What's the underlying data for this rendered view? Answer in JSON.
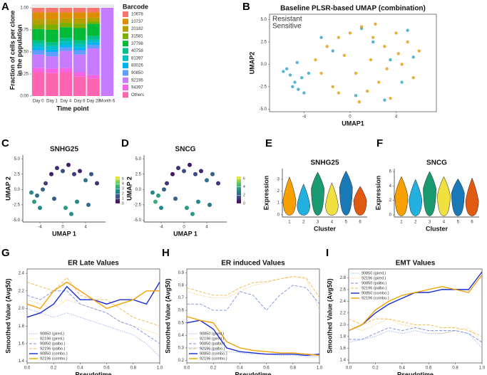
{
  "chart_data": [
    {
      "type": "stacked_bar",
      "panel": "A",
      "y_label": [
        "Fraction of cells per clone",
        "in the population"
      ],
      "x_label": "Time point",
      "legend_title": "Barcode",
      "categories": [
        "Day 0",
        "Day 1",
        "Day 4",
        "Day 8",
        "Day 28",
        "Month 6"
      ],
      "ylim": [
        0,
        1.04
      ],
      "yticks": [
        {
          "value": 0,
          "label": "0.00"
        },
        0.25,
        {
          "value": 0.5,
          "label": "0.50"
        },
        0.75,
        {
          "value": 1,
          "label": "1.00"
        }
      ],
      "series": [
        {
          "name": "Others",
          "color": "#ff64b0",
          "values": [
            0.27,
            0.26,
            0.27,
            0.22,
            0.2,
            0
          ]
        },
        {
          "name": "94397",
          "color": "#f564e3",
          "values": [
            0.05,
            0.05,
            0.05,
            0.05,
            0.04,
            0
          ]
        },
        {
          "name": "92196",
          "color": "#c77cff",
          "values": [
            0.15,
            0.14,
            0.19,
            0.2,
            0.3,
            1
          ]
        },
        {
          "name": "90850",
          "color": "#619cff",
          "values": [
            0.05,
            0.05,
            0.04,
            0.05,
            0.04,
            0
          ]
        },
        {
          "name": "83026",
          "color": "#00b4f0",
          "values": [
            0.03,
            0.03,
            0.03,
            0.03,
            0.03,
            0
          ]
        },
        {
          "name": "81397",
          "color": "#00bfc4",
          "values": [
            0.04,
            0.04,
            0.04,
            0.04,
            0.03,
            0
          ]
        },
        {
          "name": "40758",
          "color": "#00c08b",
          "values": [
            0.04,
            0.04,
            0.04,
            0.04,
            0.04,
            0
          ]
        },
        {
          "name": "37798",
          "color": "#00ba38",
          "values": [
            0.13,
            0.14,
            0.12,
            0.14,
            0.14,
            0
          ]
        },
        {
          "name": "31581",
          "color": "#7cae00",
          "values": [
            0.05,
            0.06,
            0.05,
            0.05,
            0.03,
            0
          ]
        },
        {
          "name": "20182",
          "color": "#b79f00",
          "values": [
            0.06,
            0.06,
            0.05,
            0.06,
            0.04,
            0
          ]
        },
        {
          "name": "10737",
          "color": "#de8c00",
          "values": [
            0.08,
            0.08,
            0.07,
            0.07,
            0.06,
            0
          ]
        },
        {
          "name": "10678",
          "color": "#f8766d",
          "values": [
            0.05,
            0.05,
            0.05,
            0.05,
            0.05,
            0
          ]
        }
      ]
    },
    {
      "type": "scatter",
      "panel": "B",
      "title": "Baseline PLSR-based UMAP (combination)",
      "x_label": "UMAP1",
      "y_label": "UMAP2",
      "xlim": [
        -7,
        7.5
      ],
      "ylim": [
        -5.3,
        5.6
      ],
      "xticks": [
        -4,
        0,
        4
      ],
      "yticks": [
        {
          "value": -5,
          "label": "-5.0"
        },
        -2.5,
        {
          "value": 0,
          "label": "0.0"
        },
        2.5,
        {
          "value": 5,
          "label": "5.0"
        }
      ],
      "series": [
        {
          "name": "Resistant",
          "color": "#3aa8c8",
          "x": [
            -5.5,
            -5.2,
            -4.8,
            -4.5,
            -4.2,
            -5.8,
            -5.0,
            -4.0,
            -3.6,
            -4.6,
            -1.5,
            0.5,
            2.0,
            3.5,
            4.5,
            5.5,
            -2.5,
            1.0,
            3.0,
            5.0
          ],
          "y": [
            -0.5,
            -1.2,
            -2.0,
            -2.8,
            -1.5,
            -0.8,
            -2.5,
            -3.2,
            -1.0,
            0.2,
            1.5,
            -3.5,
            2.5,
            0.5,
            -2.0,
            0.8,
            3.0,
            4.0,
            -4.0,
            3.8
          ]
        },
        {
          "name": "Sensitive",
          "color": "#e8a020",
          "x": [
            -3.0,
            -2.0,
            -1.0,
            0.0,
            1.0,
            2.0,
            3.0,
            4.0,
            5.0,
            6.0,
            -2.5,
            -1.5,
            0.5,
            1.5,
            2.5,
            3.5,
            4.5,
            5.5,
            -0.5,
            1.8,
            3.2,
            4.2,
            -1.0,
            0.8,
            2.2
          ],
          "y": [
            0.5,
            2.0,
            3.0,
            3.5,
            4.2,
            3.0,
            2.0,
            3.5,
            2.5,
            1.5,
            -1.0,
            -2.5,
            -1.0,
            -3.0,
            -2.0,
            -3.8,
            0.0,
            -1.5,
            1.0,
            0.5,
            -0.5,
            1.2,
            -3.2,
            -4.2,
            4.5
          ]
        }
      ]
    },
    {
      "type": "scatter",
      "panel": "C",
      "title": "SNHG25",
      "x_label": "UMAP 1",
      "y_label": "UMAP 2",
      "xlim": [
        -7,
        7.5
      ],
      "ylim": [
        -5.3,
        5.6
      ],
      "xticks": [
        -4,
        0,
        4
      ],
      "yticks": [
        {
          "value": -5,
          "label": "-5.0"
        },
        -2.5,
        {
          "value": 0,
          "label": "0.0"
        },
        2.5,
        {
          "value": 5,
          "label": "5.0"
        }
      ],
      "x": [
        -5.5,
        -5,
        -4.5,
        -4,
        -3,
        -2,
        -1,
        0,
        1,
        2,
        3,
        4,
        5,
        6,
        -1.5,
        0.5,
        2.5,
        4.5,
        -3.5,
        1.5
      ],
      "y": [
        -0.5,
        -2,
        -1,
        -3,
        1,
        2.5,
        3.5,
        3,
        4,
        2.5,
        3,
        1.5,
        2.5,
        1,
        -1.5,
        -3,
        -2,
        -2.5,
        0,
        -4
      ],
      "values": [
        2.5,
        3,
        2,
        2.5,
        1,
        0.5,
        0.8,
        1.2,
        0.5,
        1,
        0.6,
        2,
        1.5,
        0.8,
        1.5,
        3,
        2.5,
        2,
        1.8,
        2.8
      ],
      "colormap": [
        "#440154",
        "#3b528b",
        "#21918c",
        "#5ec962",
        "#fde725"
      ],
      "clim": [
        0,
        5.5
      ],
      "cticks": [
        0,
        1,
        2,
        3,
        4,
        5
      ]
    },
    {
      "type": "scatter",
      "panel": "D",
      "title": "SNCG",
      "x_label": "UMAP 1",
      "y_label": "UMAP 2",
      "xlim": [
        -7,
        7.5
      ],
      "ylim": [
        -5.3,
        5.6
      ],
      "xticks": [
        -4,
        0,
        4
      ],
      "yticks": [
        {
          "value": -5,
          "label": "-5.0"
        },
        -2.5,
        {
          "value": 0,
          "label": "0.0"
        },
        2.5,
        {
          "value": 5,
          "label": "5.0"
        }
      ],
      "x": [
        -5.5,
        -5,
        -4.5,
        -4,
        -3,
        -2,
        -1,
        0,
        1,
        2,
        3,
        4,
        5,
        6,
        -1.5,
        0.5,
        2.5,
        4.5,
        -3.5,
        1.5
      ],
      "y": [
        -0.5,
        -2,
        -1,
        -3,
        1,
        2.5,
        3.5,
        3,
        4,
        2.5,
        3,
        1.5,
        2.5,
        1,
        -1.5,
        -3,
        -2,
        -2.5,
        0,
        -4
      ],
      "values": [
        3,
        4,
        3.5,
        3,
        1,
        0.5,
        1,
        1.5,
        0.5,
        1.5,
        0.8,
        2.5,
        2,
        1,
        2,
        3.5,
        3,
        2.5,
        2,
        3.5
      ],
      "colormap": [
        "#440154",
        "#3b528b",
        "#21918c",
        "#5ec962",
        "#fde725"
      ],
      "clim": [
        0,
        6.5
      ],
      "cticks": [
        0,
        2,
        4,
        6
      ]
    },
    {
      "type": "violin",
      "panel": "E",
      "title": "SNHG25",
      "x_label": "Cluster",
      "y_label": "Expression",
      "categories": [
        "1",
        "2",
        "3",
        "4",
        "5",
        "6"
      ],
      "ylim": [
        -0.2,
        3.9
      ],
      "yticks": [
        0,
        1,
        2,
        3
      ],
      "values": [
        1.2,
        0.8,
        2.2,
        0.8,
        2.3,
        1.2
      ],
      "max": [
        3.2,
        2.6,
        3.6,
        2.7,
        3.7,
        2.4
      ],
      "colors": [
        "#f8a000",
        "#22b0e0",
        "#1a9a70",
        "#f0e040",
        "#1a7ab8",
        "#e05a10"
      ]
    },
    {
      "type": "violin",
      "panel": "F",
      "title": "SNCG",
      "x_label": "Cluster",
      "y_label": "Expression",
      "categories": [
        "1",
        "2",
        "3",
        "4",
        "5",
        "6"
      ],
      "ylim": [
        -0.3,
        6.4
      ],
      "yticks": [
        0,
        2,
        4,
        6
      ],
      "values": [
        2.6,
        2.1,
        3.6,
        2.7,
        3.0,
        1.9
      ],
      "max": [
        5.3,
        4.9,
        6.0,
        5.3,
        5.0,
        5.1
      ],
      "colors": [
        "#f8a000",
        "#22b0e0",
        "#1a9a70",
        "#f0e040",
        "#1a7ab8",
        "#e05a10"
      ]
    },
    {
      "type": "line",
      "panel": "G",
      "title": "ER Late Values",
      "x_label": "Pseudotime",
      "y_label": "Smoothed Value (Avg50)",
      "legend": "lower left",
      "x": [
        0,
        0.1,
        0.2,
        0.3,
        0.4,
        0.5,
        0.6,
        0.7,
        0.8,
        0.9,
        1.0
      ],
      "xlim": [
        0,
        1
      ],
      "xticks": [
        {
          "value": 0,
          "label": "0.0"
        },
        0.2,
        0.4,
        0.6,
        0.8,
        {
          "value": 1,
          "label": "1.0"
        }
      ],
      "ylim": [
        1.38,
        2.45
      ],
      "yticks": [
        1.4,
        1.6,
        1.8,
        {
          "value": 2,
          "label": "2.0"
        },
        2.2,
        2.4
      ],
      "series": [
        {
          "name": "90850 (gired.)",
          "color": "#8fa8e8",
          "dash": "dotted",
          "values": [
            2.0,
            1.95,
            1.9,
            1.95,
            1.9,
            1.85,
            1.8,
            1.75,
            1.7,
            1.6,
            1.45
          ]
        },
        {
          "name": "92196 (gired.)",
          "color": "#f5c878",
          "dash": "dotted",
          "values": [
            2.1,
            2.05,
            2.0,
            2.1,
            2.05,
            2.0,
            1.95,
            1.85,
            1.8,
            1.75,
            1.7
          ]
        },
        {
          "name": "90850 (palbo.)",
          "color": "#7b8fe0",
          "dash": "dashed",
          "values": [
            2.15,
            2.1,
            2.2,
            2.2,
            2.05,
            2.0,
            1.95,
            1.85,
            1.8,
            1.7,
            1.6
          ]
        },
        {
          "name": "92196 (palbo.)",
          "color": "#f0b850",
          "dash": "dashed",
          "values": [
            2.3,
            2.25,
            2.2,
            2.35,
            2.15,
            2.1,
            2.1,
            2.0,
            1.9,
            1.85,
            1.8
          ]
        },
        {
          "name": "90850 (combo.)",
          "color": "#1a2bd0",
          "dash": "solid",
          "values": [
            1.9,
            1.95,
            2.05,
            2.25,
            2.1,
            2.1,
            2.05,
            2.1,
            2.1,
            2.05,
            2.3
          ]
        },
        {
          "name": "92196 (combo.)",
          "color": "#f5a000",
          "dash": "solid",
          "values": [
            2.05,
            2.0,
            2.2,
            2.3,
            2.2,
            2.1,
            2.0,
            2.05,
            2.1,
            2.2,
            2.2
          ]
        }
      ]
    },
    {
      "type": "line",
      "panel": "H",
      "title": "ER induced Values",
      "x_label": "Pseudotime",
      "y_label": "Smoothed Value (Avg50)",
      "legend": "lower left",
      "x": [
        0,
        0.1,
        0.2,
        0.3,
        0.4,
        0.5,
        0.6,
        0.7,
        0.8,
        0.9,
        1.0
      ],
      "xlim": [
        0,
        1
      ],
      "xticks": [
        {
          "value": 0,
          "label": "0.0"
        },
        0.2,
        0.4,
        0.6,
        0.8,
        {
          "value": 1,
          "label": "1.0"
        }
      ],
      "ylim": [
        0.18,
        0.93
      ],
      "yticks": [
        0.2,
        0.3,
        0.4,
        0.5,
        0.6,
        0.7,
        0.8,
        0.9
      ],
      "series": [
        {
          "name": "90850 (gired.)",
          "color": "#8fa8e8",
          "dash": "dotted",
          "values": [
            0.3,
            0.3,
            0.28,
            0.27,
            0.26,
            0.25,
            0.25,
            0.24,
            0.24,
            0.23,
            0.23
          ]
        },
        {
          "name": "92196 (gired.)",
          "color": "#f5c878",
          "dash": "dotted",
          "values": [
            0.75,
            0.72,
            0.7,
            0.7,
            0.75,
            0.8,
            0.82,
            0.85,
            0.87,
            0.85,
            0.6
          ]
        },
        {
          "name": "90850 (palbo.)",
          "color": "#7b8fe0",
          "dash": "dashed",
          "values": [
            0.65,
            0.65,
            0.6,
            0.6,
            0.75,
            0.72,
            0.6,
            0.72,
            0.8,
            0.78,
            0.65
          ]
        },
        {
          "name": "92196 (palbo.)",
          "color": "#f0b850",
          "dash": "dashed",
          "values": [
            0.78,
            0.75,
            0.72,
            0.72,
            0.78,
            0.82,
            0.83,
            0.85,
            0.87,
            0.86,
            0.7
          ]
        },
        {
          "name": "90850 (combo.)",
          "color": "#1a2bd0",
          "dash": "solid",
          "values": [
            0.5,
            0.52,
            0.45,
            0.3,
            0.27,
            0.26,
            0.25,
            0.25,
            0.25,
            0.24,
            0.25
          ]
        },
        {
          "name": "92196 (combo.)",
          "color": "#f5a000",
          "dash": "solid",
          "values": [
            0.55,
            0.52,
            0.5,
            0.35,
            0.3,
            0.28,
            0.27,
            0.26,
            0.26,
            0.25,
            0.24
          ]
        }
      ]
    },
    {
      "type": "line",
      "panel": "I",
      "title": "EMT Values",
      "x_label": "Pseudotime",
      "y_label": "Smoothed Value (Avg50)",
      "legend": "upper left",
      "x": [
        0,
        0.1,
        0.2,
        0.3,
        0.4,
        0.5,
        0.6,
        0.7,
        0.8,
        0.9,
        1.0
      ],
      "xlim": [
        0,
        1
      ],
      "xticks": [
        {
          "value": 0,
          "label": "0.0"
        },
        0.2,
        0.4,
        0.6,
        0.8,
        {
          "value": 1,
          "label": "1.0"
        }
      ],
      "ylim": [
        1.35,
        2.95
      ],
      "yticks": [
        1.4,
        1.6,
        1.8,
        {
          "value": 2,
          "label": "2.0"
        },
        2.2,
        2.4,
        2.6,
        2.8
      ],
      "series": [
        {
          "name": "90850 (gired.)",
          "color": "#8fa8e8",
          "dash": "dotted",
          "values": [
            1.7,
            1.75,
            1.8,
            1.9,
            1.85,
            1.9,
            1.85,
            1.85,
            1.9,
            1.85,
            1.6
          ]
        },
        {
          "name": "92196 (gired.)",
          "color": "#f5c878",
          "dash": "dotted",
          "values": [
            2.0,
            1.9,
            2.0,
            2.1,
            2.0,
            1.95,
            1.9,
            1.85,
            1.9,
            1.95,
            1.7
          ]
        },
        {
          "name": "90850 (palbo.)",
          "color": "#7b8fe0",
          "dash": "dashed",
          "values": [
            1.75,
            1.75,
            1.85,
            1.95,
            1.9,
            1.95,
            1.9,
            1.9,
            1.9,
            1.85,
            1.7
          ]
        },
        {
          "name": "92196 (palbo.)",
          "color": "#f0b850",
          "dash": "dashed",
          "values": [
            2.1,
            2.0,
            2.1,
            2.1,
            2.05,
            2.0,
            2.0,
            1.95,
            1.95,
            1.9,
            1.8
          ]
        },
        {
          "name": "90850 (combo.)",
          "color": "#1a2bd0",
          "dash": "solid",
          "values": [
            1.9,
            2.0,
            2.2,
            2.35,
            2.45,
            2.55,
            2.55,
            2.6,
            2.6,
            2.6,
            2.9
          ]
        },
        {
          "name": "92196 (combo.)",
          "color": "#f5a000",
          "dash": "solid",
          "values": [
            1.9,
            2.0,
            2.25,
            2.4,
            2.5,
            2.55,
            2.6,
            2.65,
            2.6,
            2.55,
            2.85
          ]
        }
      ]
    }
  ]
}
